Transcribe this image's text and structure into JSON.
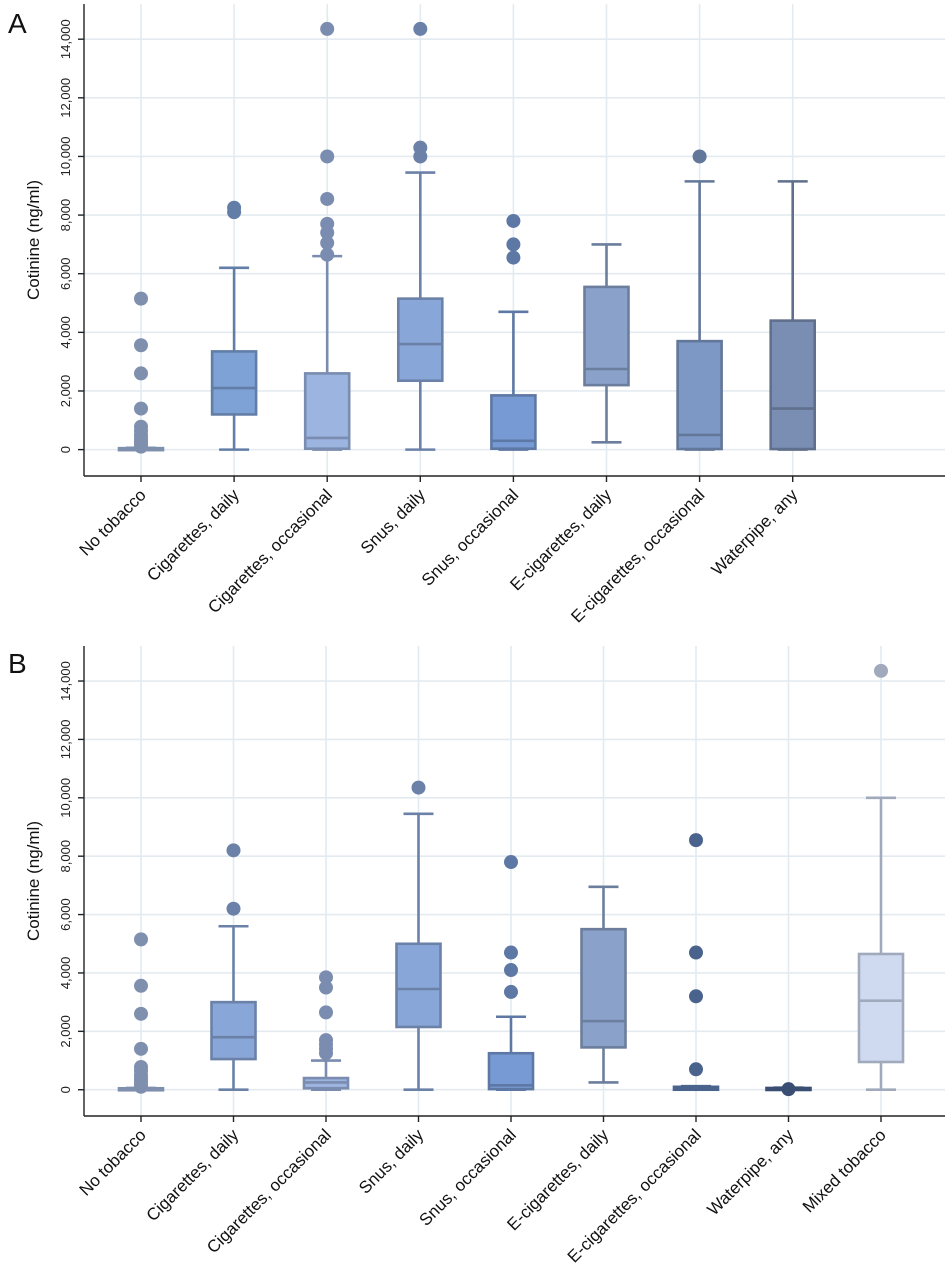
{
  "chart_data": [
    {
      "type": "box",
      "panel_label": "A",
      "ylabel": "Cotinine (ng/ml)",
      "ylim": [
        -900,
        15200
      ],
      "yticks": [
        0,
        2000,
        4000,
        6000,
        8000,
        10000,
        12000,
        14000
      ],
      "ytick_labels": [
        "0",
        "2,000",
        "4,000",
        "6,000",
        "8,000",
        "10,000",
        "12,000",
        "14,000"
      ],
      "grid": true,
      "categories": [
        "No tobacco",
        "Cigarettes, daily",
        "Cigarettes, occasional",
        "Snus, daily",
        "Snus, occasional",
        "E-cigarettes, daily",
        "E-cigarettes, occasional",
        "Waterpipe, any"
      ],
      "boxes": [
        {
          "category": "No tobacco",
          "min": 0,
          "q1": 0,
          "median": 20,
          "q3": 50,
          "max": 60,
          "outliers": [
            5150,
            3560,
            2600,
            1400,
            780,
            650,
            500,
            400,
            300,
            200,
            100
          ],
          "color": "#a3b9e0"
        },
        {
          "category": "Cigarettes, daily",
          "min": 0,
          "q1": 1200,
          "median": 2100,
          "q3": 3350,
          "max": 6200,
          "outliers": [
            8100,
            8250
          ],
          "color": "#7ea1d6"
        },
        {
          "category": "Cigarettes, occasional",
          "min": 0,
          "q1": 30,
          "median": 400,
          "q3": 2600,
          "max": 6600,
          "outliers": [
            14350,
            10000,
            8550,
            7700,
            7400,
            7050,
            6650
          ],
          "color": "#9cb4e0"
        },
        {
          "category": "Snus, daily",
          "min": 0,
          "q1": 2350,
          "median": 3600,
          "q3": 5150,
          "max": 9450,
          "outliers": [
            14350,
            10300,
            10000
          ],
          "color": "#89a6d8"
        },
        {
          "category": "Snus, occasional",
          "min": 0,
          "q1": 30,
          "median": 300,
          "q3": 1850,
          "max": 4700,
          "outliers": [
            7800,
            7000,
            6550
          ],
          "color": "#789ad4"
        },
        {
          "category": "E-cigarettes, daily",
          "min": 250,
          "q1": 2200,
          "median": 2750,
          "q3": 5550,
          "max": 7000,
          "outliers": [],
          "color": "#8aa2c9"
        },
        {
          "category": "E-cigarettes, occasional",
          "min": 0,
          "q1": 20,
          "median": 500,
          "q3": 3700,
          "max": 9150,
          "outliers": [
            10000
          ],
          "color": "#7d98c4"
        },
        {
          "category": "Waterpipe, any",
          "min": 0,
          "q1": 20,
          "median": 1400,
          "q3": 4400,
          "max": 9150,
          "outliers": [],
          "color": "#7a8eb4"
        }
      ]
    },
    {
      "type": "box",
      "panel_label": "B",
      "ylabel": "Cotinine (ng/ml)",
      "ylim": [
        -900,
        15200
      ],
      "yticks": [
        0,
        2000,
        4000,
        6000,
        8000,
        10000,
        12000,
        14000
      ],
      "ytick_labels": [
        "0",
        "2,000",
        "4,000",
        "6,000",
        "8,000",
        "10,000",
        "12,000",
        "14,000"
      ],
      "grid": true,
      "categories": [
        "No tobacco",
        "Cigarettes, daily",
        "Cigarettes, occasional",
        "Snus, daily",
        "Snus, occasional",
        "E-cigarettes, daily",
        "E-cigarettes, occasional",
        "Waterpipe, any",
        "Mixed tobacco"
      ],
      "boxes": [
        {
          "category": "No tobacco",
          "min": 0,
          "q1": 0,
          "median": 20,
          "q3": 50,
          "max": 60,
          "outliers": [
            5150,
            3560,
            2600,
            1400,
            780,
            650,
            500,
            400,
            300,
            200,
            100
          ],
          "color": "#a3b9e0"
        },
        {
          "category": "Cigarettes, daily",
          "min": 0,
          "q1": 1050,
          "median": 1800,
          "q3": 3000,
          "max": 5600,
          "outliers": [
            8200,
            6200
          ],
          "color": "#89a6d8"
        },
        {
          "category": "Cigarettes, occasional",
          "min": 0,
          "q1": 50,
          "median": 250,
          "q3": 400,
          "max": 1000,
          "outliers": [
            3850,
            3500,
            2650,
            1700,
            1550,
            1400,
            1250
          ],
          "color": "#9cb4e0"
        },
        {
          "category": "Snus, daily",
          "min": 0,
          "q1": 2150,
          "median": 3450,
          "q3": 5000,
          "max": 9450,
          "outliers": [
            10350
          ],
          "color": "#89a6d8"
        },
        {
          "category": "Snus, occasional",
          "min": 0,
          "q1": 20,
          "median": 150,
          "q3": 1250,
          "max": 2500,
          "outliers": [
            7800,
            4700,
            4100,
            3350
          ],
          "color": "#789ad4"
        },
        {
          "category": "E-cigarettes, daily",
          "min": 250,
          "q1": 1450,
          "median": 2350,
          "q3": 5500,
          "max": 6950,
          "outliers": [],
          "color": "#8aa2c9"
        },
        {
          "category": "E-cigarettes, occasional",
          "min": 0,
          "q1": 0,
          "median": 50,
          "q3": 100,
          "max": 120,
          "outliers": [
            8550,
            4700,
            3200,
            700
          ],
          "color": "#5f7fb4"
        },
        {
          "category": "Waterpipe, any",
          "min": 0,
          "q1": 0,
          "median": 20,
          "q3": 60,
          "max": 70,
          "outliers": [
            20
          ],
          "color": "#4a6494"
        },
        {
          "category": "Mixed tobacco",
          "min": 0,
          "q1": 950,
          "median": 3050,
          "q3": 4650,
          "max": 10000,
          "outliers": [
            14350
          ],
          "color": "#cfdaf1"
        }
      ]
    }
  ]
}
